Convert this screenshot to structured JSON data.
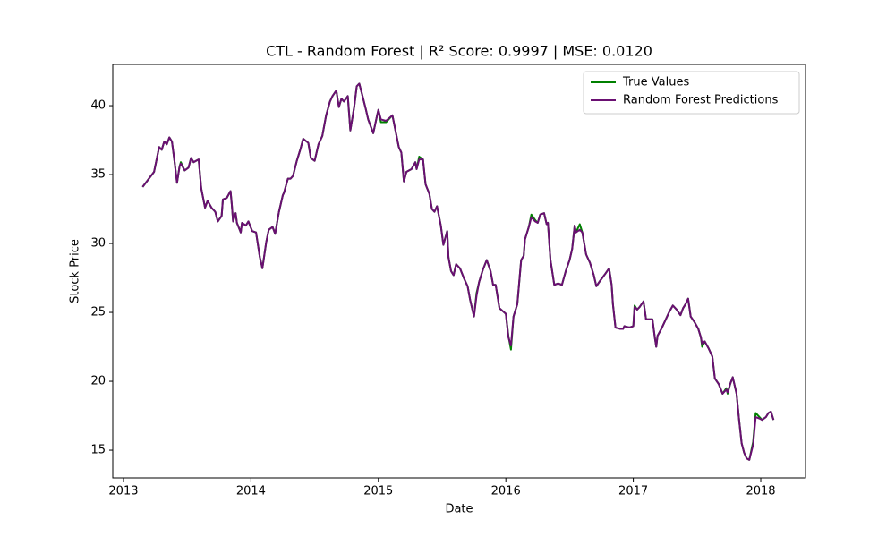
{
  "chart_data": {
    "type": "line",
    "title": "CTL - Random Forest | R² Score: 0.9997 | MSE: 0.0120",
    "x_label": "Date",
    "y_label": "Stock Price",
    "x": [
      2013.15,
      2013.24,
      2013.28,
      2013.3,
      2013.32,
      2013.34,
      2013.36,
      2013.38,
      2013.4,
      2013.42,
      2013.44,
      2013.45,
      2013.48,
      2013.51,
      2013.53,
      2013.55,
      2013.59,
      2013.61,
      2013.64,
      2013.66,
      2013.69,
      2013.72,
      2013.74,
      2013.77,
      2013.78,
      2013.81,
      2013.84,
      2013.85,
      2013.86,
      2013.88,
      2013.89,
      2013.92,
      2013.93,
      2013.96,
      2013.98,
      2014.01,
      2014.04,
      2014.07,
      2014.09,
      2014.12,
      2014.14,
      2014.17,
      2014.19,
      2014.22,
      2014.25,
      2014.26,
      2014.29,
      2014.31,
      2014.33,
      2014.36,
      2014.39,
      2014.41,
      2014.45,
      2014.47,
      2014.5,
      2014.53,
      2014.56,
      2014.59,
      2014.62,
      2014.64,
      2014.67,
      2014.69,
      2014.71,
      2014.73,
      2014.76,
      2014.78,
      2014.81,
      2014.83,
      2014.85,
      2014.87,
      2014.9,
      2014.92,
      2014.96,
      2014.99,
      2015.0,
      2015.02,
      2015.06,
      2015.11,
      2015.16,
      2015.18,
      2015.2,
      2015.22,
      2015.26,
      2015.29,
      2015.3,
      2015.32,
      2015.35,
      2015.37,
      2015.4,
      2015.42,
      2015.44,
      2015.46,
      2015.49,
      2015.51,
      2015.54,
      2015.55,
      2015.57,
      2015.59,
      2015.61,
      2015.64,
      2015.67,
      2015.7,
      2015.72,
      2015.75,
      2015.77,
      2015.79,
      2015.82,
      2015.85,
      2015.88,
      2015.9,
      2015.92,
      2015.95,
      2016.0,
      2016.02,
      2016.04,
      2016.06,
      2016.09,
      2016.12,
      2016.14,
      2016.15,
      2016.18,
      2016.2,
      2016.23,
      2016.25,
      2016.27,
      2016.3,
      2016.32,
      2016.33,
      2016.35,
      2016.38,
      2016.41,
      2016.44,
      2016.47,
      2016.5,
      2016.52,
      2016.54,
      2016.55,
      2016.58,
      2016.6,
      2016.63,
      2016.66,
      2016.69,
      2016.71,
      2016.74,
      2016.78,
      2016.81,
      2016.83,
      2016.84,
      2016.86,
      2016.9,
      2016.92,
      2016.93,
      2016.97,
      2017.0,
      2017.01,
      2017.03,
      2017.05,
      2017.08,
      2017.1,
      2017.15,
      2017.17,
      2017.18,
      2017.19,
      2017.22,
      2017.25,
      2017.28,
      2017.31,
      2017.34,
      2017.37,
      2017.39,
      2017.41,
      2017.43,
      2017.45,
      2017.48,
      2017.51,
      2017.53,
      2017.54,
      2017.56,
      2017.59,
      2017.62,
      2017.64,
      2017.67,
      2017.7,
      2017.73,
      2017.74,
      2017.76,
      2017.78,
      2017.81,
      2017.83,
      2017.85,
      2017.87,
      2017.89,
      2017.91,
      2017.94,
      2017.96,
      2017.99,
      2018.01,
      2018.04,
      2018.06,
      2018.08,
      2018.1
    ],
    "series": [
      {
        "name": "True Values",
        "color": "#008000",
        "values": [
          34.1,
          35.2,
          37.0,
          36.8,
          37.4,
          37.2,
          37.7,
          37.4,
          36.0,
          34.4,
          35.6,
          35.9,
          35.3,
          35.5,
          36.2,
          35.9,
          36.1,
          34.0,
          32.6,
          33.1,
          32.6,
          32.3,
          31.6,
          32.0,
          33.2,
          33.3,
          33.8,
          32.8,
          31.6,
          32.2,
          31.5,
          30.8,
          31.5,
          31.3,
          31.6,
          30.9,
          30.8,
          29.0,
          28.2,
          30.1,
          31.0,
          31.2,
          30.7,
          32.3,
          33.5,
          33.7,
          34.7,
          34.7,
          34.9,
          36.0,
          36.9,
          37.6,
          37.3,
          36.2,
          36.0,
          37.2,
          37.8,
          39.3,
          40.3,
          40.7,
          41.1,
          39.9,
          40.5,
          40.3,
          40.7,
          38.2,
          39.9,
          41.4,
          41.6,
          40.9,
          39.8,
          39.0,
          38.0,
          39.3,
          39.7,
          38.8,
          38.8,
          39.3,
          37.0,
          36.6,
          34.5,
          35.2,
          35.4,
          35.9,
          35.4,
          36.3,
          36.1,
          34.3,
          33.6,
          32.5,
          32.3,
          32.7,
          31.3,
          29.9,
          30.9,
          29.0,
          28.0,
          27.7,
          28.5,
          28.2,
          27.5,
          26.9,
          25.9,
          24.7,
          26.4,
          27.2,
          28.1,
          28.8,
          28.0,
          27.0,
          27.0,
          25.3,
          24.9,
          23.3,
          22.3,
          24.7,
          25.6,
          28.8,
          29.1,
          30.3,
          31.2,
          32.1,
          31.7,
          31.5,
          32.1,
          32.2,
          31.4,
          31.5,
          28.8,
          27.0,
          27.1,
          27.0,
          28.0,
          28.8,
          29.6,
          31.3,
          30.8,
          31.4,
          30.8,
          29.2,
          28.6,
          27.7,
          26.9,
          27.3,
          27.8,
          28.2,
          27.0,
          25.6,
          23.9,
          23.8,
          23.8,
          24.0,
          23.9,
          24.0,
          25.5,
          25.2,
          25.4,
          25.8,
          24.5,
          24.5,
          23.1,
          22.5,
          23.3,
          23.8,
          24.4,
          25.0,
          25.5,
          25.2,
          24.8,
          25.3,
          25.6,
          26.0,
          24.7,
          24.3,
          23.8,
          23.2,
          22.5,
          22.9,
          22.4,
          21.8,
          20.2,
          19.8,
          19.1,
          19.5,
          19.1,
          19.8,
          20.3,
          19.1,
          17.2,
          15.5,
          14.8,
          14.4,
          14.3,
          15.6,
          17.7,
          17.4,
          17.2,
          17.4,
          17.7,
          17.8,
          17.2
        ]
      },
      {
        "name": "Random Forest Predictions",
        "color": "#6a0f72",
        "values": [
          34.1,
          35.2,
          37.0,
          36.8,
          37.4,
          37.2,
          37.7,
          37.4,
          36.0,
          34.4,
          35.6,
          35.8,
          35.3,
          35.5,
          36.2,
          35.9,
          36.1,
          34.0,
          32.6,
          33.1,
          32.6,
          32.3,
          31.6,
          32.0,
          33.2,
          33.3,
          33.8,
          32.8,
          31.6,
          32.2,
          31.5,
          30.8,
          31.5,
          31.3,
          31.6,
          30.9,
          30.8,
          29.0,
          28.2,
          30.1,
          31.0,
          31.2,
          30.7,
          32.3,
          33.5,
          33.7,
          34.7,
          34.7,
          34.9,
          36.0,
          36.9,
          37.6,
          37.3,
          36.2,
          36.0,
          37.2,
          37.8,
          39.3,
          40.3,
          40.7,
          41.1,
          39.9,
          40.5,
          40.3,
          40.7,
          38.2,
          39.9,
          41.4,
          41.6,
          40.9,
          39.8,
          39.0,
          38.0,
          39.3,
          39.7,
          39.0,
          38.9,
          39.3,
          37.0,
          36.6,
          34.5,
          35.2,
          35.4,
          35.9,
          35.4,
          36.1,
          36.1,
          34.3,
          33.6,
          32.5,
          32.3,
          32.7,
          31.3,
          29.9,
          30.9,
          29.0,
          28.0,
          27.7,
          28.5,
          28.2,
          27.5,
          26.9,
          25.9,
          24.7,
          26.2,
          27.2,
          28.1,
          28.8,
          28.0,
          27.0,
          27.0,
          25.3,
          24.9,
          23.2,
          22.6,
          24.7,
          25.6,
          28.8,
          29.1,
          30.3,
          31.2,
          31.9,
          31.6,
          31.5,
          32.1,
          32.2,
          31.4,
          31.5,
          28.8,
          27.0,
          27.1,
          27.0,
          28.0,
          28.8,
          29.6,
          31.3,
          30.8,
          31.0,
          30.8,
          29.2,
          28.6,
          27.7,
          26.9,
          27.3,
          27.8,
          28.2,
          27.0,
          25.6,
          23.9,
          23.8,
          23.8,
          24.0,
          23.9,
          24.0,
          25.4,
          25.2,
          25.4,
          25.8,
          24.5,
          24.5,
          23.1,
          22.5,
          23.3,
          23.8,
          24.4,
          25.0,
          25.5,
          25.2,
          24.8,
          25.3,
          25.6,
          26.0,
          24.7,
          24.3,
          23.8,
          23.2,
          22.7,
          22.9,
          22.4,
          21.8,
          20.2,
          19.8,
          19.1,
          19.4,
          19.2,
          19.8,
          20.3,
          19.1,
          17.2,
          15.5,
          14.8,
          14.4,
          14.3,
          15.4,
          17.4,
          17.3,
          17.2,
          17.4,
          17.7,
          17.8,
          17.2
        ]
      }
    ],
    "xlim": [
      2012.916,
      2018.351
    ],
    "xticks": [
      2013,
      2014,
      2015,
      2016,
      2017,
      2018
    ],
    "ylim": [
      12.99,
      42.99
    ],
    "yticks": [
      15,
      20,
      25,
      30,
      35,
      40
    ],
    "grid": false,
    "legend": "upper right"
  }
}
